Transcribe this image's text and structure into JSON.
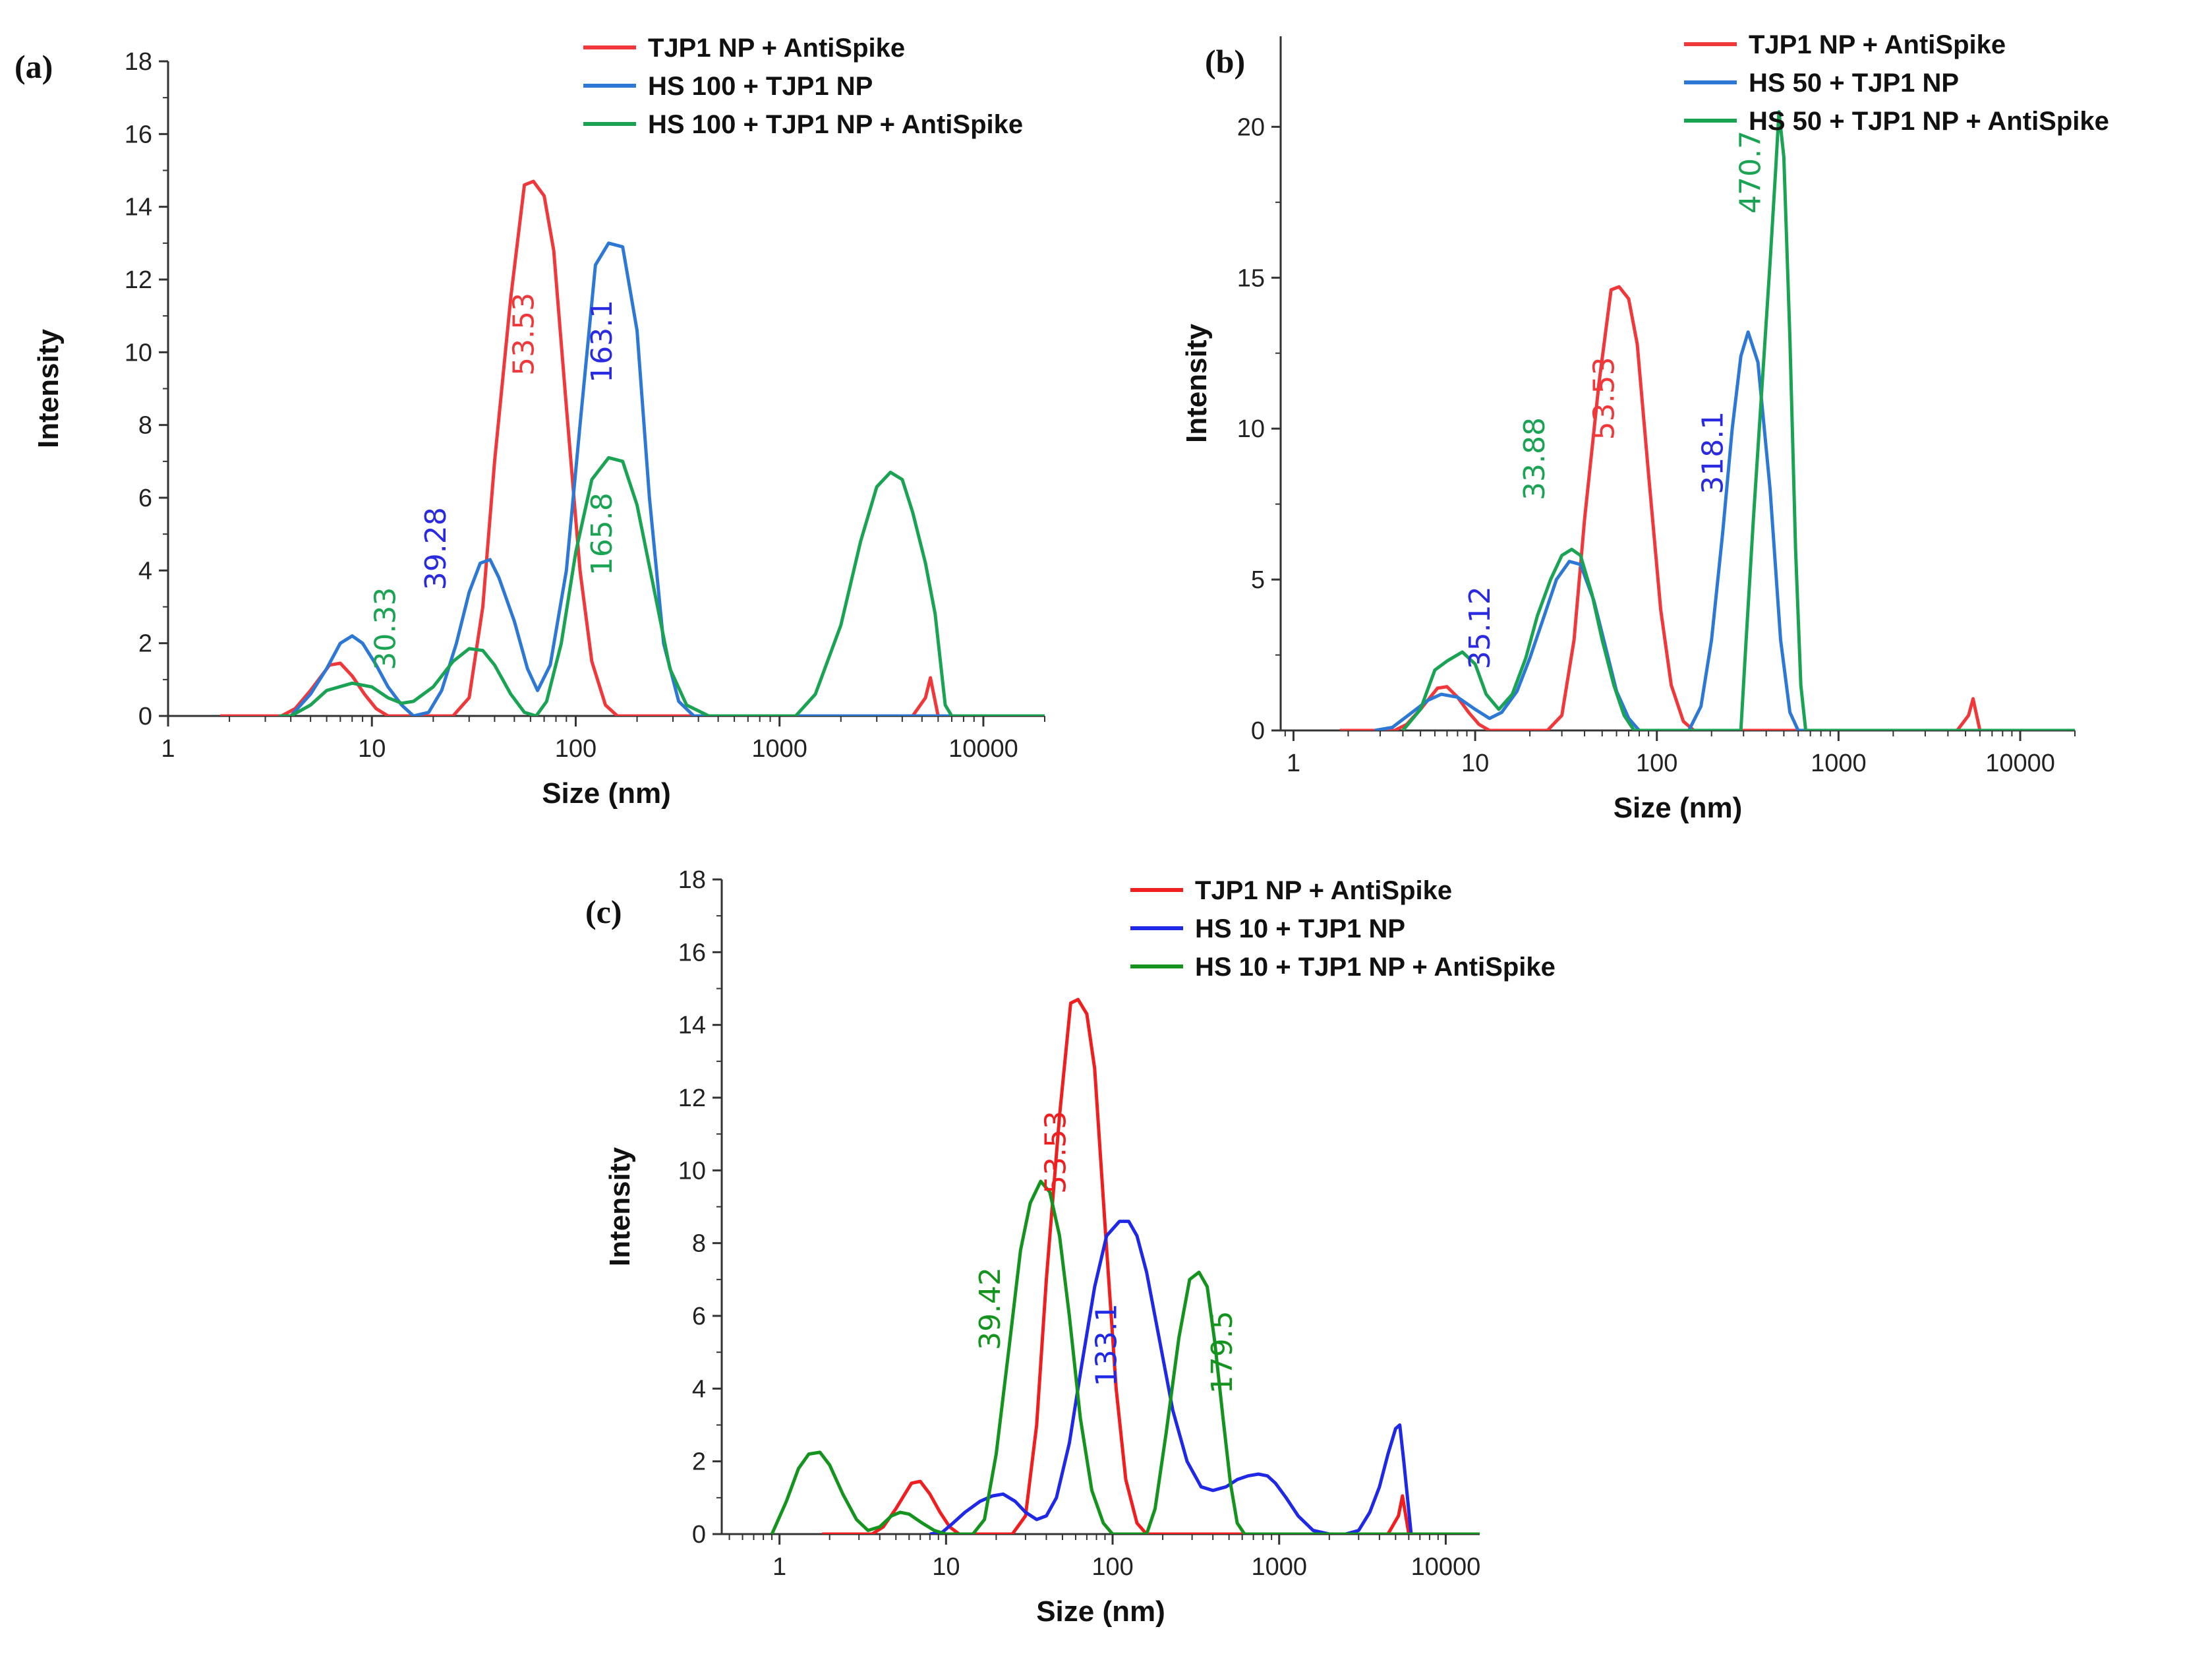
{
  "chart_data": [
    {
      "panel_label": "(a)",
      "type": "line",
      "xscale": "log",
      "xlim": [
        1,
        20000
      ],
      "ylim": [
        0,
        18
      ],
      "xlabel": "Size (nm)",
      "ylabel": "Intensity",
      "xticks": [
        1,
        10,
        100,
        1000,
        10000
      ],
      "xtick_labels": [
        "1",
        "10",
        "100",
        "1000",
        "10000"
      ],
      "yticks": [
        0,
        2,
        4,
        6,
        8,
        10,
        12,
        14,
        16,
        18
      ],
      "ytick_labels": [
        "0",
        "2",
        "4",
        "6",
        "8",
        "10",
        "12",
        "14",
        "16",
        "18"
      ],
      "legend": "top-right",
      "series": [
        {
          "name": "TJP1 NP + AntiSpike",
          "color": "#f0383a",
          "x": [
            1.8,
            3.6,
            4.2,
            5.0,
            6.2,
            7.0,
            8.0,
            9.2,
            10.5,
            12.0,
            20,
            25,
            30,
            35,
            40,
            48,
            56,
            62,
            70,
            78,
            90,
            105,
            120,
            140,
            160,
            200,
            400,
            4500,
            5200,
            5500,
            6000,
            20000
          ],
          "y": [
            0,
            0,
            0.2,
            0.7,
            1.4,
            1.45,
            1.1,
            0.6,
            0.2,
            0,
            0,
            0,
            0.5,
            3.0,
            7.0,
            11.5,
            14.6,
            14.7,
            14.3,
            12.8,
            8.5,
            4.0,
            1.5,
            0.3,
            0,
            0,
            0,
            0,
            0.5,
            1.05,
            0,
            0
          ]
        },
        {
          "name": "HS 100 + TJP1 NP",
          "color": "#2d78d4",
          "x": [
            3.5,
            4.0,
            5.0,
            6.0,
            7.0,
            8.0,
            9.0,
            10.5,
            12.0,
            14.0,
            16.0,
            19.0,
            22,
            26,
            30,
            34,
            38,
            42,
            50,
            58,
            65,
            75,
            90,
            105,
            125,
            145,
            170,
            200,
            230,
            270,
            320,
            380,
            20000
          ],
          "y": [
            0,
            0,
            0.6,
            1.3,
            2.0,
            2.2,
            2.0,
            1.4,
            0.8,
            0.3,
            0,
            0.1,
            0.7,
            2.0,
            3.4,
            4.2,
            4.3,
            3.8,
            2.6,
            1.3,
            0.7,
            1.4,
            4.0,
            8.0,
            12.4,
            13.0,
            12.9,
            10.6,
            6.0,
            2.0,
            0.4,
            0,
            0
          ]
        },
        {
          "name": "HS 100 + TJP1 NP + AntiSpike",
          "color": "#1aa353",
          "x": [
            3.5,
            4.0,
            5.0,
            6.0,
            8.0,
            10.0,
            12.0,
            14.0,
            16.0,
            20,
            25,
            30,
            35,
            40,
            48,
            56,
            64,
            72,
            85,
            100,
            120,
            145,
            170,
            200,
            240,
            290,
            350,
            450,
            1000,
            1200,
            1500,
            2000,
            2500,
            3000,
            3500,
            4000,
            4500,
            5200,
            5800,
            6500,
            7000,
            20000
          ],
          "y": [
            0,
            0,
            0.3,
            0.7,
            0.9,
            0.8,
            0.5,
            0.35,
            0.4,
            0.8,
            1.5,
            1.85,
            1.8,
            1.4,
            0.6,
            0.1,
            0,
            0.4,
            2.0,
            4.5,
            6.5,
            7.1,
            7.0,
            5.8,
            3.6,
            1.3,
            0.3,
            0,
            0,
            0,
            0.6,
            2.5,
            4.8,
            6.3,
            6.7,
            6.5,
            5.6,
            4.2,
            2.8,
            0.3,
            0,
            0
          ]
        }
      ],
      "annotations": [
        {
          "text": "53.53",
          "color": "#f0383a",
          "at_x": 62,
          "at_y": 10.5
        },
        {
          "text": "163.1",
          "color": "#2a2ae0",
          "at_x": 150,
          "at_y": 10.3
        },
        {
          "text": "39.28",
          "color": "#2a2ae0",
          "at_x": 23,
          "at_y": 4.6
        },
        {
          "text": "30.33",
          "color": "#1aa353",
          "at_x": 13,
          "at_y": 2.4
        },
        {
          "text": "165.8",
          "color": "#1aa353",
          "at_x": 150,
          "at_y": 5.0
        }
      ]
    },
    {
      "panel_label": "(b)",
      "type": "line",
      "xscale": "log",
      "xlim": [
        0.85,
        20000
      ],
      "ylim": [
        0,
        23
      ],
      "xlabel": "Size (nm)",
      "ylabel": "Intensity",
      "xticks": [
        1,
        10,
        100,
        1000,
        10000
      ],
      "xtick_labels": [
        "1",
        "10",
        "100",
        "1000",
        "10000"
      ],
      "yticks": [
        0,
        5,
        10,
        15,
        20
      ],
      "ytick_labels": [
        "0",
        "5",
        "10",
        "15",
        "20"
      ],
      "legend": "top-right",
      "series": [
        {
          "name": "TJP1 NP + AntiSpike",
          "color": "#f0383a",
          "x": [
            1.8,
            3.6,
            4.2,
            5.0,
            6.2,
            7.0,
            8.0,
            9.2,
            10.5,
            12.0,
            20,
            25,
            30,
            35,
            40,
            48,
            56,
            62,
            70,
            78,
            90,
            105,
            120,
            140,
            160,
            200,
            400,
            4500,
            5200,
            5500,
            6000,
            20000
          ],
          "y": [
            0,
            0,
            0.2,
            0.7,
            1.4,
            1.45,
            1.1,
            0.6,
            0.2,
            0,
            0,
            0,
            0.5,
            3.0,
            7.0,
            11.5,
            14.6,
            14.7,
            14.3,
            12.8,
            8.5,
            4.0,
            1.5,
            0.3,
            0,
            0,
            0,
            0,
            0.5,
            1.05,
            0,
            0
          ]
        },
        {
          "name": "HS 50 + TJP1 NP",
          "color": "#2d78d4",
          "x": [
            2.8,
            3.5,
            4.5,
            5.5,
            6.5,
            8.0,
            10.0,
            12.0,
            14.0,
            17.0,
            20,
            24,
            28,
            33,
            38,
            45,
            52,
            60,
            70,
            80,
            150,
            175,
            200,
            230,
            260,
            290,
            318,
            360,
            420,
            480,
            540,
            600,
            20000
          ],
          "y": [
            0,
            0.1,
            0.6,
            1.0,
            1.2,
            1.1,
            0.7,
            0.4,
            0.6,
            1.3,
            2.4,
            3.8,
            5.0,
            5.6,
            5.5,
            4.3,
            2.8,
            1.3,
            0.4,
            0,
            0,
            0.8,
            3.0,
            6.5,
            10.0,
            12.4,
            13.2,
            12.2,
            8.0,
            3.0,
            0.6,
            0,
            0
          ]
        },
        {
          "name": "HS 50 + TJP1 NP + AntiSpike",
          "color": "#1aa353",
          "x": [
            4.0,
            5.0,
            6.0,
            7.0,
            8.5,
            10.0,
            11.5,
            13.5,
            16.0,
            19.0,
            22,
            26,
            30,
            34,
            38,
            44,
            50,
            58,
            66,
            75,
            290,
            310,
            340,
            380,
            420,
            450,
            470,
            500,
            540,
            580,
            620,
            660,
            20000
          ],
          "y": [
            0,
            0.7,
            2.0,
            2.3,
            2.6,
            2.2,
            1.2,
            0.7,
            1.2,
            2.4,
            3.8,
            5.0,
            5.8,
            6.0,
            5.8,
            4.5,
            3.0,
            1.5,
            0.5,
            0,
            0,
            3.0,
            7.0,
            11.5,
            15.5,
            18.5,
            20.5,
            19.0,
            13.0,
            6.0,
            1.5,
            0,
            0
          ]
        }
      ],
      "annotations": [
        {
          "text": "470.7",
          "color": "#1aa353",
          "at_x": 370,
          "at_y": 18.5
        },
        {
          "text": "53.53",
          "color": "#f0383a",
          "at_x": 58,
          "at_y": 11.0
        },
        {
          "text": "318.1",
          "color": "#2a2ae0",
          "at_x": 230,
          "at_y": 9.2
        },
        {
          "text": "33.88",
          "color": "#1aa353",
          "at_x": 24,
          "at_y": 9.0
        },
        {
          "text": "35.12",
          "color": "#2a2ae0",
          "at_x": 12,
          "at_y": 3.4
        }
      ]
    },
    {
      "panel_label": "(c)",
      "type": "line",
      "xscale": "log",
      "xlim": [
        0.45,
        16000
      ],
      "ylim": [
        0,
        18
      ],
      "xlabel": "Size (nm)",
      "ylabel": "Intensity",
      "xticks": [
        1,
        10,
        100,
        1000,
        10000
      ],
      "xtick_labels": [
        "1",
        "10",
        "100",
        "1000",
        "10000"
      ],
      "yticks": [
        0,
        2,
        4,
        6,
        8,
        10,
        12,
        14,
        16,
        18
      ],
      "ytick_labels": [
        "0",
        "2",
        "4",
        "6",
        "8",
        "10",
        "12",
        "14",
        "16",
        "18"
      ],
      "legend": "top-right",
      "series": [
        {
          "name": "TJP1 NP + AntiSpike",
          "color": "#f01e1e",
          "x": [
            1.8,
            3.6,
            4.2,
            5.0,
            6.2,
            7.0,
            8.0,
            9.2,
            10.5,
            12.0,
            20,
            25,
            30,
            35,
            40,
            48,
            56,
            62,
            70,
            78,
            90,
            105,
            120,
            140,
            160,
            200,
            400,
            4500,
            5200,
            5500,
            6000,
            20000
          ],
          "y": [
            0,
            0,
            0.2,
            0.7,
            1.4,
            1.45,
            1.1,
            0.6,
            0.2,
            0,
            0,
            0,
            0.5,
            3.0,
            7.0,
            11.5,
            14.6,
            14.7,
            14.3,
            12.8,
            8.5,
            4.0,
            1.5,
            0.3,
            0,
            0,
            0,
            0,
            0.5,
            1.05,
            0,
            0
          ]
        },
        {
          "name": "HS 10 + TJP1 NP",
          "color": "#1e28e6",
          "x": [
            8.0,
            9.5,
            11.0,
            13.0,
            16.0,
            19.0,
            22,
            26,
            30,
            35,
            40,
            46,
            55,
            65,
            78,
            92,
            110,
            125,
            140,
            160,
            190,
            230,
            280,
            340,
            400,
            480,
            560,
            650,
            750,
            850,
            950,
            1100,
            1300,
            1600,
            2000,
            2500,
            3000,
            3500,
            4000,
            4500,
            5000,
            5300,
            5600,
            6200,
            20000
          ],
          "y": [
            0,
            0.05,
            0.3,
            0.6,
            0.9,
            1.05,
            1.1,
            0.9,
            0.6,
            0.4,
            0.5,
            1.0,
            2.5,
            4.6,
            6.8,
            8.2,
            8.6,
            8.6,
            8.2,
            7.2,
            5.4,
            3.4,
            2.0,
            1.3,
            1.2,
            1.3,
            1.5,
            1.6,
            1.65,
            1.6,
            1.4,
            1.0,
            0.5,
            0.1,
            0,
            0,
            0.1,
            0.6,
            1.3,
            2.2,
            2.9,
            3.0,
            2.0,
            0,
            0
          ]
        },
        {
          "name": "HS 10 + TJP1 NP + AntiSpike",
          "color": "#14941e",
          "x": [
            0.9,
            1.1,
            1.3,
            1.5,
            1.75,
            2.0,
            2.4,
            2.9,
            3.4,
            4.0,
            4.7,
            5.3,
            6.0,
            7.2,
            8.5,
            10.0,
            12.0,
            14.5,
            17.0,
            20,
            24,
            28,
            32,
            37,
            42,
            48,
            55,
            64,
            75,
            88,
            100,
            120,
            140,
            160,
            180,
            210,
            250,
            290,
            330,
            370,
            410,
            460,
            510,
            560,
            620,
            20000
          ],
          "y": [
            0,
            0.9,
            1.8,
            2.2,
            2.25,
            1.9,
            1.1,
            0.4,
            0.1,
            0.2,
            0.5,
            0.6,
            0.55,
            0.3,
            0.1,
            0,
            0,
            0,
            0.4,
            2.2,
            5.2,
            7.8,
            9.1,
            9.7,
            9.4,
            8.2,
            6.0,
            3.2,
            1.2,
            0.3,
            0,
            0,
            0,
            0,
            0.7,
            2.8,
            5.4,
            7.0,
            7.2,
            6.8,
            5.3,
            3.2,
            1.4,
            0.3,
            0,
            0
          ]
        }
      ],
      "annotations": [
        {
          "text": "53.53",
          "color": "#f01e1e",
          "at_x": 52,
          "at_y": 10.5
        },
        {
          "text": "39.42",
          "color": "#14941e",
          "at_x": 21,
          "at_y": 6.2
        },
        {
          "text": "133.1",
          "color": "#1e28e6",
          "at_x": 105,
          "at_y": 5.2
        },
        {
          "text": "179.5",
          "color": "#14941e",
          "at_x": 520,
          "at_y": 5.0
        }
      ]
    }
  ]
}
